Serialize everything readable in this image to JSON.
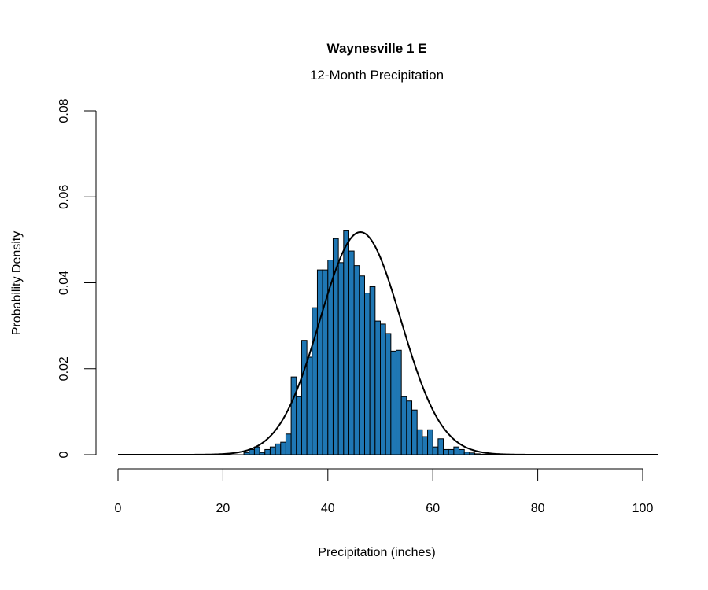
{
  "chart_data": {
    "type": "bar",
    "title": "Waynesville 1 E",
    "subtitle": "12-Month Precipitation",
    "xlabel": "Precipitation (inches)",
    "ylabel": "Probability Density",
    "xlim": [
      0,
      100
    ],
    "ylim": [
      0,
      0.08
    ],
    "xticks": [
      "0",
      "20",
      "40",
      "60",
      "80",
      "100"
    ],
    "yticks": [
      "0",
      "0.02",
      "0.04",
      "0.06",
      "0.08"
    ],
    "bin_width": 1,
    "bar_color": "#1f77b4",
    "bar_edge_color": "#000000",
    "grid": false,
    "legend": null,
    "bins_start": [
      24,
      25,
      26,
      27,
      28,
      29,
      30,
      31,
      32,
      33,
      34,
      35,
      36,
      37,
      38,
      39,
      40,
      41,
      42,
      43,
      44,
      45,
      46,
      47,
      48,
      49,
      50,
      51,
      52,
      53,
      54,
      55,
      56,
      57,
      58,
      59,
      60,
      61,
      62,
      63,
      64,
      65,
      66,
      67,
      68,
      69,
      70,
      71
    ],
    "values": [
      0.0005,
      0.0012,
      0.0018,
      0.0005,
      0.0012,
      0.0018,
      0.0025,
      0.0029,
      0.0048,
      0.0181,
      0.0135,
      0.0266,
      0.0227,
      0.0342,
      0.043,
      0.043,
      0.0453,
      0.0503,
      0.0447,
      0.0521,
      0.0474,
      0.044,
      0.0416,
      0.0376,
      0.0391,
      0.0311,
      0.0304,
      0.0282,
      0.0241,
      0.0243,
      0.0135,
      0.0125,
      0.0104,
      0.0058,
      0.0042,
      0.0058,
      0.0018,
      0.0037,
      0.0012,
      0.0012,
      0.0018,
      0.0012,
      0.0006,
      0.0004,
      0.0002,
      0.0001,
      0.0001,
      0.0001
    ],
    "overlay_curve": {
      "type": "normal_density",
      "mean": 46.2,
      "sd": 7.7,
      "color": "#000000"
    }
  }
}
